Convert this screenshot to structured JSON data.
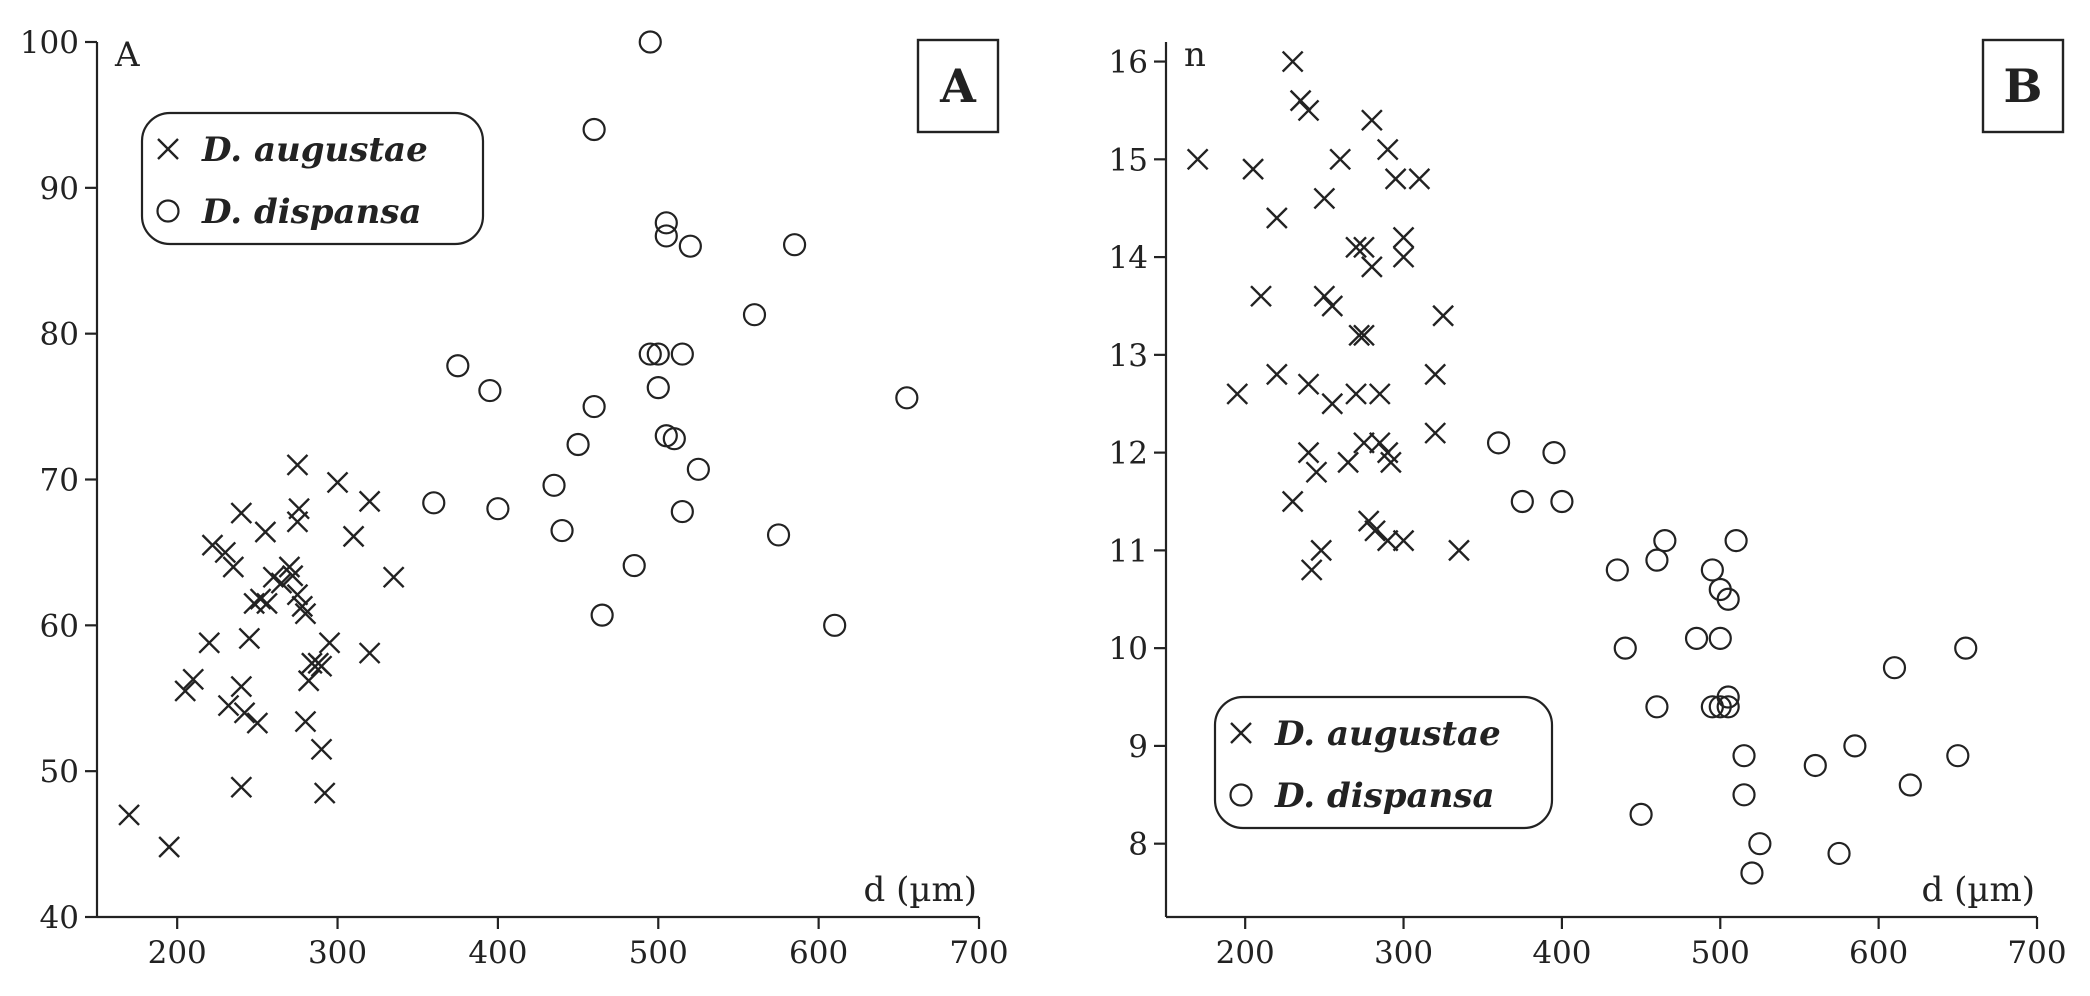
{
  "chart_data": [
    {
      "type": "scatter",
      "panel_label": "A",
      "ylabel": "A",
      "xlabel": "d (µm)",
      "xlim": [
        150,
        700
      ],
      "ylim": [
        40,
        100
      ],
      "x_ticks": [
        "200",
        "300",
        "400",
        "500",
        "600",
        "700"
      ],
      "y_ticks": [
        "40",
        "50",
        "60",
        "70",
        "80",
        "90",
        "100"
      ],
      "legend_position": "top-left",
      "series": [
        {
          "name": "D. augustae",
          "marker": "x",
          "x": [
            170,
            195,
            205,
            210,
            220,
            222,
            230,
            232,
            235,
            240,
            240,
            240,
            242,
            245,
            248,
            250,
            252,
            255,
            256,
            260,
            265,
            270,
            272,
            275,
            275,
            275,
            276,
            278,
            280,
            280,
            282,
            284,
            288,
            290,
            290,
            292,
            295,
            300,
            310,
            320,
            320,
            335
          ],
          "y": [
            47,
            44.8,
            55.5,
            56.3,
            58.8,
            65.5,
            65,
            54.5,
            64,
            67.7,
            55.8,
            48.9,
            54,
            59.1,
            61.5,
            53.3,
            61.8,
            66.4,
            61.5,
            63.3,
            62.9,
            64,
            63.4,
            71,
            67.1,
            62.1,
            68,
            61.3,
            60.8,
            53.4,
            56.2,
            57.4,
            57.4,
            57.2,
            51.5,
            48.5,
            58.8,
            69.8,
            66.1,
            68.5,
            58.1,
            63.3
          ]
        },
        {
          "name": "D. dispansa",
          "marker": "o",
          "x": [
            360,
            375,
            395,
            400,
            435,
            440,
            450,
            460,
            460,
            465,
            485,
            495,
            495,
            500,
            500,
            505,
            505,
            505,
            510,
            515,
            515,
            520,
            525,
            560,
            575,
            585,
            610,
            655
          ],
          "y": [
            68.4,
            77.8,
            76.1,
            68,
            69.6,
            66.5,
            72.4,
            94,
            75,
            60.7,
            64.1,
            100,
            78.6,
            78.6,
            76.3,
            87.6,
            86.7,
            73,
            72.8,
            78.6,
            67.8,
            86,
            70.7,
            81.3,
            66.2,
            86.1,
            60,
            75.6
          ]
        }
      ]
    },
    {
      "type": "scatter",
      "panel_label": "B",
      "ylabel": "n",
      "xlabel": "d (µm)",
      "xlim": [
        150,
        700
      ],
      "ylim": [
        7.25,
        16.2
      ],
      "x_ticks": [
        "200",
        "300",
        "400",
        "500",
        "600",
        "700"
      ],
      "y_ticks": [
        "8",
        "9",
        "10",
        "11",
        "12",
        "13",
        "14",
        "15",
        "16"
      ],
      "legend_position": "bottom-left",
      "series": [
        {
          "name": "D. augustae",
          "marker": "x",
          "x": [
            170,
            195,
            205,
            210,
            220,
            220,
            230,
            230,
            235,
            240,
            240,
            240,
            242,
            245,
            248,
            250,
            250,
            255,
            255,
            260,
            265,
            270,
            270,
            272,
            275,
            275,
            275,
            278,
            280,
            280,
            282,
            285,
            285,
            290,
            290,
            290,
            292,
            295,
            300,
            300,
            300,
            310,
            320,
            320,
            325,
            335
          ],
          "y": [
            15,
            12.6,
            14.9,
            13.6,
            14.4,
            12.8,
            16,
            11.5,
            15.6,
            15.5,
            12.7,
            12,
            10.8,
            11.8,
            11,
            14.6,
            13.6,
            13.5,
            12.5,
            15,
            11.9,
            14.1,
            12.6,
            13.2,
            14.1,
            13.2,
            12.1,
            11.3,
            15.4,
            13.9,
            11.2,
            12.6,
            12.1,
            15.1,
            12,
            11.1,
            11.9,
            14.8,
            14.2,
            14,
            11.1,
            14.8,
            12.8,
            12.2,
            13.4,
            11
          ]
        },
        {
          "name": "D. dispansa",
          "marker": "o",
          "x": [
            360,
            375,
            395,
            400,
            435,
            440,
            450,
            460,
            460,
            465,
            485,
            495,
            495,
            500,
            500,
            500,
            505,
            505,
            505,
            510,
            515,
            515,
            520,
            525,
            560,
            575,
            585,
            610,
            620,
            650,
            655
          ],
          "y": [
            12.1,
            11.5,
            12,
            11.5,
            10.8,
            10,
            8.3,
            10.9,
            9.4,
            11.1,
            10.1,
            10.8,
            9.4,
            10.6,
            10.1,
            9.4,
            10.5,
            9.5,
            9.4,
            11.1,
            8.9,
            8.5,
            7.7,
            8,
            8.8,
            7.9,
            9,
            9.8,
            8.6,
            8.9,
            10
          ]
        }
      ]
    }
  ]
}
